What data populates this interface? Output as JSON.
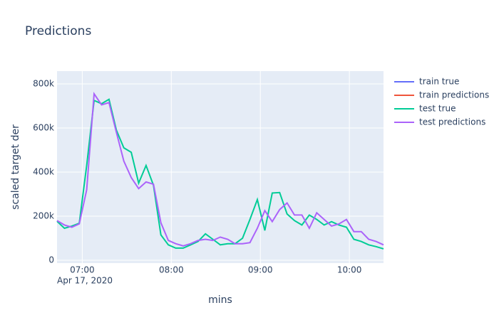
{
  "chart_data": {
    "type": "line",
    "title": "Predictions",
    "x_label": "mins",
    "y_label": "scaled target der",
    "x_date_label": "Apr 17, 2020",
    "x": [
      "2020-04-17 06:43",
      "2020-04-17 06:48",
      "2020-04-17 06:53",
      "2020-04-17 06:58",
      "2020-04-17 07:03",
      "2020-04-17 07:08",
      "2020-04-17 07:13",
      "2020-04-17 07:18",
      "2020-04-17 07:23",
      "2020-04-17 07:28",
      "2020-04-17 07:33",
      "2020-04-17 07:38",
      "2020-04-17 07:43",
      "2020-04-17 07:48",
      "2020-04-17 07:53",
      "2020-04-17 07:58",
      "2020-04-17 08:03",
      "2020-04-17 08:08",
      "2020-04-17 08:13",
      "2020-04-17 08:18",
      "2020-04-17 08:23",
      "2020-04-17 08:28",
      "2020-04-17 08:33",
      "2020-04-17 08:38",
      "2020-04-17 08:43",
      "2020-04-17 08:48",
      "2020-04-17 08:53",
      "2020-04-17 08:58",
      "2020-04-17 09:03",
      "2020-04-17 09:08",
      "2020-04-17 09:13",
      "2020-04-17 09:18",
      "2020-04-17 09:23",
      "2020-04-17 09:28",
      "2020-04-17 09:33",
      "2020-04-17 09:38",
      "2020-04-17 09:43",
      "2020-04-17 09:48",
      "2020-04-17 09:53",
      "2020-04-17 09:58",
      "2020-04-17 10:03",
      "2020-04-17 10:08",
      "2020-04-17 10:13",
      "2020-04-17 10:18",
      "2020-04-17 10:23"
    ],
    "series": [
      {
        "name": "train true",
        "color": "#636efa",
        "values": [
          null,
          null,
          null,
          null,
          null,
          null,
          null,
          null,
          null,
          null,
          null,
          null,
          null,
          null,
          null,
          null,
          null,
          null,
          null,
          null,
          null,
          null,
          null,
          null,
          null,
          null,
          null,
          null,
          null,
          null,
          null,
          null,
          null,
          null,
          null,
          null,
          null,
          null,
          null,
          null,
          null,
          null,
          null,
          null,
          null
        ]
      },
      {
        "name": "train predictions",
        "color": "#ef553b",
        "values": [
          null,
          null,
          null,
          null,
          null,
          null,
          null,
          null,
          null,
          null,
          null,
          null,
          null,
          null,
          null,
          null,
          null,
          null,
          null,
          null,
          null,
          null,
          null,
          null,
          null,
          null,
          null,
          null,
          null,
          null,
          null,
          null,
          null,
          null,
          null,
          null,
          null,
          null,
          null,
          null,
          null,
          null,
          null,
          null,
          null
        ]
      },
      {
        "name": "test true",
        "color": "#00cc96",
        "values": [
          177000,
          145000,
          155000,
          168000,
          430000,
          725000,
          710000,
          730000,
          590000,
          510000,
          490000,
          350000,
          430000,
          340000,
          115000,
          70000,
          55000,
          55000,
          70000,
          85000,
          120000,
          95000,
          70000,
          75000,
          75000,
          100000,
          185000,
          275000,
          135000,
          305000,
          307000,
          210000,
          180000,
          160000,
          205000,
          185000,
          160000,
          175000,
          160000,
          150000,
          95000,
          85000,
          70000,
          62000,
          52000
        ]
      },
      {
        "name": "test predictions",
        "color": "#ab63fa",
        "values": [
          180000,
          160000,
          150000,
          165000,
          320000,
          755000,
          705000,
          715000,
          580000,
          450000,
          375000,
          325000,
          355000,
          345000,
          170000,
          90000,
          75000,
          65000,
          75000,
          90000,
          95000,
          90000,
          105000,
          95000,
          75000,
          75000,
          80000,
          145000,
          225000,
          175000,
          230000,
          260000,
          205000,
          205000,
          145000,
          215000,
          185000,
          155000,
          165000,
          185000,
          130000,
          130000,
          95000,
          85000,
          70000
        ]
      }
    ],
    "xlim": [
      "2020-04-17 06:43",
      "2020-04-17 10:23"
    ],
    "xticks": [
      {
        "value": "2020-04-17 07:00",
        "label": "07:00"
      },
      {
        "value": "2020-04-17 08:00",
        "label": "08:00"
      },
      {
        "value": "2020-04-17 09:00",
        "label": "09:00"
      },
      {
        "value": "2020-04-17 10:00",
        "label": "10:00"
      }
    ],
    "ylim": [
      -13000,
      858000
    ],
    "yticks": [
      0,
      {
        "value": 200000,
        "label": "200k"
      },
      {
        "value": 400000,
        "label": "400k"
      },
      {
        "value": 600000,
        "label": "600k"
      },
      {
        "value": 800000,
        "label": "800k"
      }
    ],
    "grid": true,
    "legend": "top-right"
  }
}
